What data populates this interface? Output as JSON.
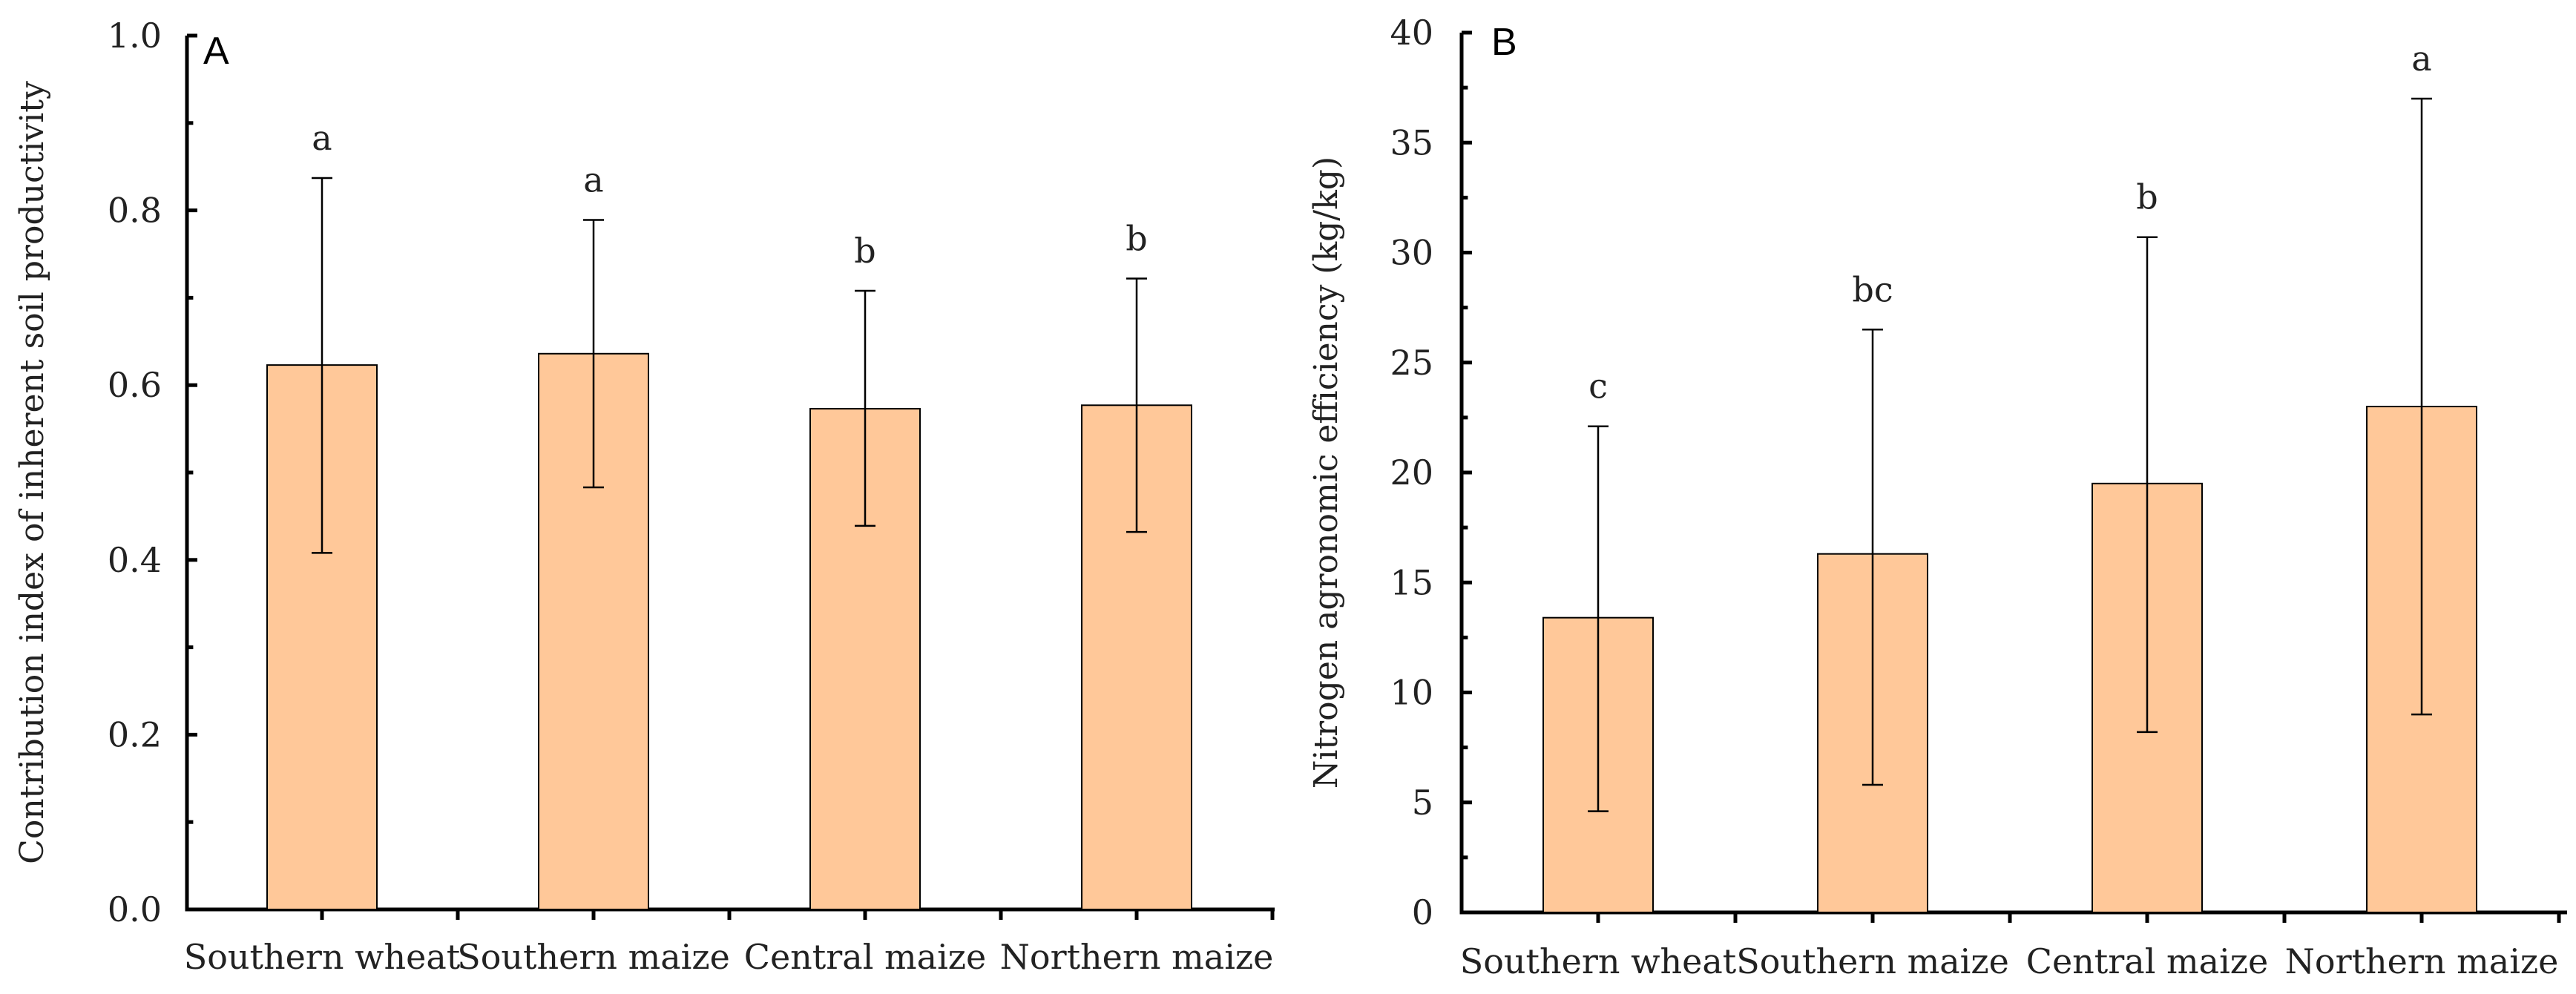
{
  "chart_data": [
    {
      "id": "A",
      "type": "bar",
      "panel_label": "A",
      "title": "",
      "xlabel": "",
      "ylabel": "Contribution index of inherent soil productivity",
      "categories": [
        "Southern wheat",
        "Southern maize",
        "Central maize",
        "Northern maize"
      ],
      "values": [
        0.623,
        0.636,
        0.573,
        0.577
      ],
      "error_low": [
        0.408,
        0.483,
        0.439,
        0.432
      ],
      "error_high": [
        0.837,
        0.789,
        0.708,
        0.722
      ],
      "significance": [
        "a",
        "a",
        "b",
        "b"
      ],
      "ylim": [
        0,
        1.0
      ],
      "yticks": [
        0.0,
        0.2,
        0.4,
        0.6,
        0.8,
        1.0
      ],
      "ytick_labels": [
        "0.0",
        "0.2",
        "0.4",
        "0.6",
        "0.8",
        "1.0"
      ],
      "bar_color": "#ffc899",
      "grid": false
    },
    {
      "id": "B",
      "type": "bar",
      "panel_label": "B",
      "title": "",
      "xlabel": "",
      "ylabel": "Nitrogen agronomic efficiency (kg/kg)",
      "categories": [
        "Southern wheat",
        "Southern maize",
        "Central maize",
        "Northern maize"
      ],
      "values": [
        13.4,
        16.3,
        19.5,
        23.0
      ],
      "error_low": [
        4.6,
        5.8,
        8.2,
        9.0
      ],
      "error_high": [
        22.1,
        26.5,
        30.7,
        37.0
      ],
      "significance": [
        "c",
        "bc",
        "b",
        "a"
      ],
      "ylim": [
        0,
        40
      ],
      "yticks": [
        0,
        5,
        10,
        15,
        20,
        25,
        30,
        35,
        40
      ],
      "ytick_labels": [
        "0",
        "5",
        "10",
        "15",
        "20",
        "25",
        "30",
        "35",
        "40"
      ],
      "bar_color": "#ffc899",
      "grid": false
    }
  ]
}
